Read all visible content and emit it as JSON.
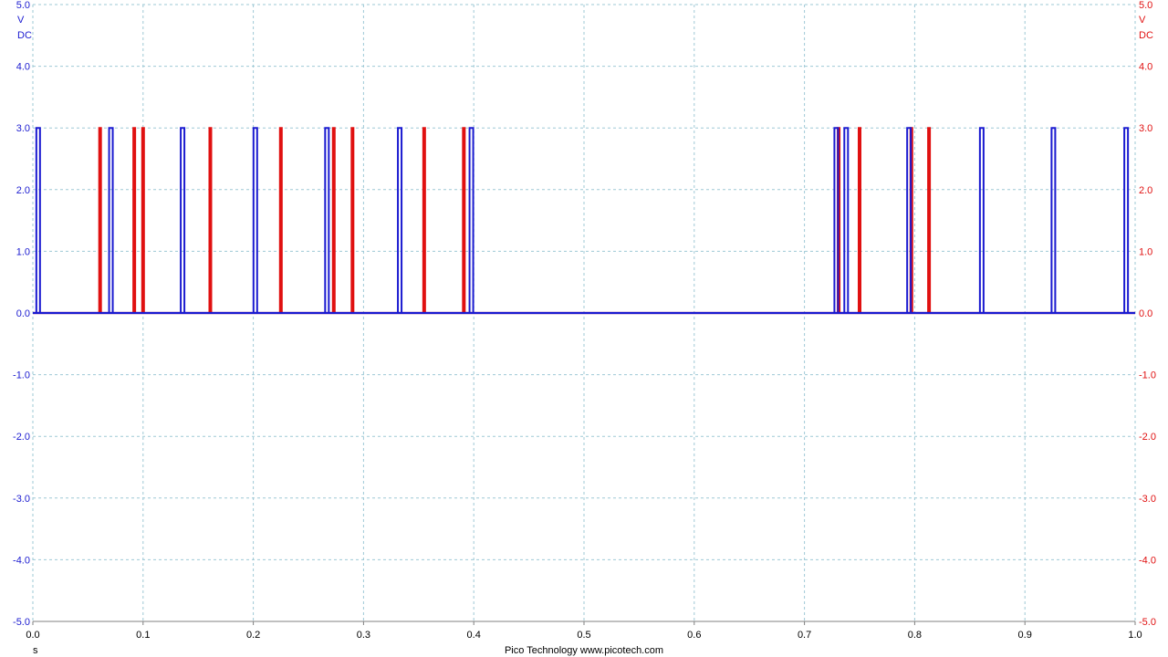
{
  "chart_data": {
    "type": "line",
    "x_unit": "s",
    "xlim": [
      0,
      1
    ],
    "ylim": [
      -5,
      5
    ],
    "x_ticks": [
      "0.0",
      "0.1",
      "0.2",
      "0.3",
      "0.4",
      "0.5",
      "0.6",
      "0.7",
      "0.8",
      "0.9",
      "1.0"
    ],
    "y_ticks": [
      "-5.0",
      "-4.0",
      "-3.0",
      "-2.0",
      "-1.0",
      "0.0",
      "1.0",
      "2.0",
      "3.0",
      "4.0",
      "5.0"
    ],
    "left_axis": {
      "unit": "V",
      "coupling": "DC",
      "color": "#1a1ad0"
    },
    "right_axis": {
      "unit": "V",
      "coupling": "DC",
      "color": "#e01010"
    },
    "grid": true,
    "footer": "Pico Technology  www.picotech.com",
    "pulse_level": 3.0,
    "baseline": 0.0,
    "series": [
      {
        "color": "#1a1ad0",
        "pulses_x": [
          0.004,
          0.07,
          0.135,
          0.201,
          0.266,
          0.332,
          0.397,
          0.728,
          0.737,
          0.794,
          0.86,
          0.925,
          0.991
        ]
      },
      {
        "color": "#e01010",
        "pulses_x": [
          0.061,
          0.092,
          0.1,
          0.161,
          0.225,
          0.273,
          0.29,
          0.355,
          0.391,
          0.731,
          0.75,
          0.797,
          0.813
        ]
      }
    ]
  }
}
